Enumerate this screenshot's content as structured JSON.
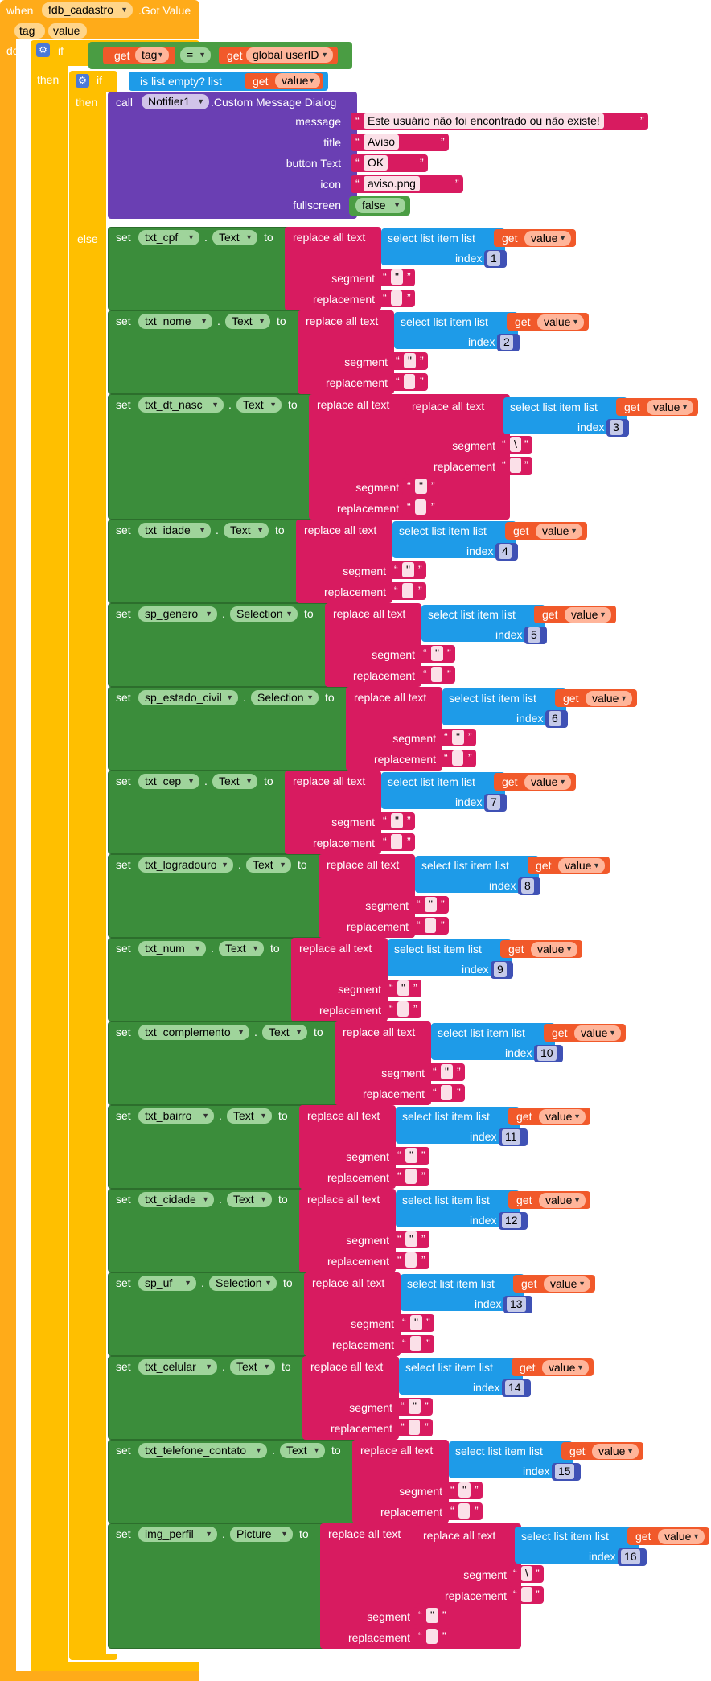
{
  "event": {
    "when_label": "when",
    "component": "fdb_cadastro",
    "event_name": ".Got Value",
    "params": [
      "tag",
      "value"
    ],
    "do_label": "do"
  },
  "if_block": {
    "if_label": "if",
    "then_label": "then",
    "get_label": "get",
    "tag_var": "tag",
    "op": "=",
    "global_var": "global userID"
  },
  "inner_if": {
    "if_label": "if",
    "then_label": "then",
    "else_label": "else",
    "is_empty_label": "is list empty?  list",
    "get_label": "get",
    "value_var": "value"
  },
  "notifier": {
    "call_label": "call",
    "component": "Notifier1",
    "method": ".Custom Message Dialog",
    "args": [
      {
        "label": "message",
        "value": "Este usuário não foi encontrado ou não existe!"
      },
      {
        "label": "title",
        "value": "Aviso"
      },
      {
        "label": "button Text",
        "value": "OK"
      },
      {
        "label": "icon",
        "value": "aviso.png"
      },
      {
        "label": "fullscreen",
        "value": "false"
      }
    ]
  },
  "labels": {
    "set": "set",
    "to": "to",
    "replace_all_text": "replace all text",
    "select_list_item": "select list item  list",
    "index": "index",
    "segment": "segment",
    "replacement": "replacement",
    "get": "get",
    "value": "value",
    "quote_seg": "\"",
    "quote_dbl": "\"",
    "backslash": "\\"
  },
  "setters": [
    {
      "component": "txt_cpf",
      "prop": "Text",
      "index": "1",
      "double": false
    },
    {
      "component": "txt_nome",
      "prop": "Text",
      "index": "2",
      "double": false
    },
    {
      "component": "txt_dt_nasc",
      "prop": "Text",
      "index": "3",
      "double": true
    },
    {
      "component": "txt_idade",
      "prop": "Text",
      "index": "4",
      "double": false
    },
    {
      "component": "sp_genero",
      "prop": "Selection",
      "index": "5",
      "double": false
    },
    {
      "component": "sp_estado_civil",
      "prop": "Selection",
      "index": "6",
      "double": false
    },
    {
      "component": "txt_cep",
      "prop": "Text",
      "index": "7",
      "double": false
    },
    {
      "component": "txt_logradouro",
      "prop": "Text",
      "index": "8",
      "double": false
    },
    {
      "component": "txt_num",
      "prop": "Text",
      "index": "9",
      "double": false
    },
    {
      "component": "txt_complemento",
      "prop": "Text",
      "index": "10",
      "double": false
    },
    {
      "component": "txt_bairro",
      "prop": "Text",
      "index": "11",
      "double": false
    },
    {
      "component": "txt_cidade",
      "prop": "Text",
      "index": "12",
      "double": false
    },
    {
      "component": "sp_uf",
      "prop": "Selection",
      "index": "13",
      "double": false
    },
    {
      "component": "txt_celular",
      "prop": "Text",
      "index": "14",
      "double": false
    },
    {
      "component": "txt_telefone_contato",
      "prop": "Text",
      "index": "15",
      "double": false
    },
    {
      "component": "img_perfil",
      "prop": "Picture",
      "index": "16",
      "double": true
    }
  ],
  "colors": {
    "event": "#ffab19",
    "control": "#ffbf00",
    "setter": "#3b8d3b",
    "text": "#d81b60",
    "list": "#1e9be8",
    "variable": "#f1592a",
    "procedure": "#6a3fb3"
  }
}
